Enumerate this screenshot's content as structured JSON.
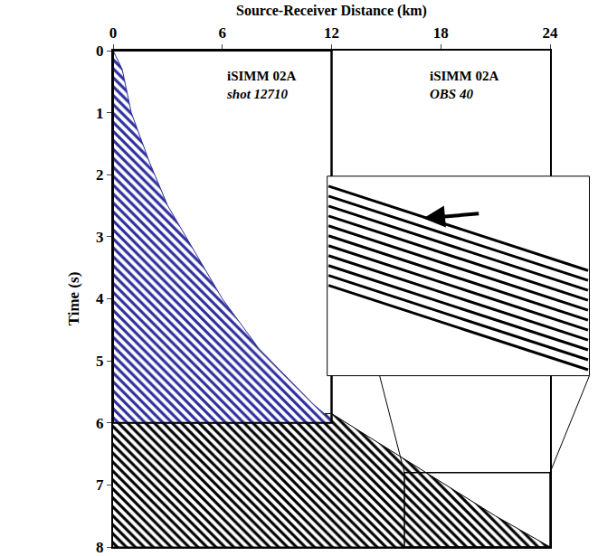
{
  "chart_data": {
    "type": "area",
    "x_label": "Source-Receiver Distance (km)",
    "y_label": "Time (s)",
    "xlim": [
      0,
      24
    ],
    "ylim": [
      0,
      8
    ],
    "xticks": [
      0,
      6,
      12,
      18,
      24
    ],
    "yticks": [
      0,
      1,
      2,
      3,
      4,
      5,
      6,
      7,
      8
    ],
    "grid": false,
    "panels": [
      {
        "label_lines": [
          "iSIMM 02A",
          "shot 12710"
        ],
        "label_x": 8.1,
        "label_y": 0.55,
        "xlim": [
          0,
          12
        ],
        "ylim": [
          0,
          6
        ]
      },
      {
        "label_lines": [
          "iSIMM 02A",
          "OBS 40"
        ],
        "label_x": 19.3,
        "label_y": 0.55,
        "xlim": [
          12,
          24
        ],
        "ylim": [
          0,
          8
        ]
      }
    ],
    "zoom_box": {
      "xlim": [
        16,
        24
      ],
      "ylim": [
        6.8,
        8
      ]
    },
    "series": [
      {
        "color": "#2e2e9c",
        "panel": 0,
        "x": [
          0,
          0.5,
          1,
          2,
          3,
          4,
          5,
          6,
          7,
          8,
          9,
          10,
          11,
          12
        ],
        "values": [
          0,
          0.3,
          1.0,
          1.8,
          2.5,
          3.0,
          3.5,
          4.0,
          4.4,
          4.8,
          5.1,
          5.4,
          5.7,
          5.95
        ]
      },
      {
        "color": "#000000",
        "panel": 1,
        "x": [
          12,
          15,
          18,
          21,
          24
        ],
        "values": [
          5.85,
          6.4,
          6.95,
          7.5,
          8.0
        ]
      }
    ]
  }
}
